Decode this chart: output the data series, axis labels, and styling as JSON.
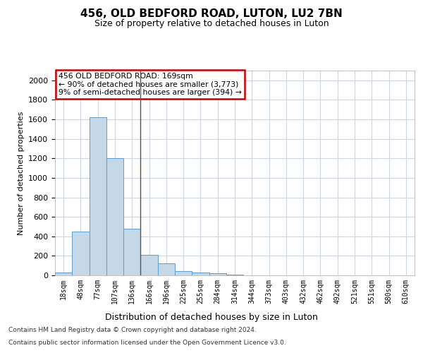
{
  "title1": "456, OLD BEDFORD ROAD, LUTON, LU2 7BN",
  "title2": "Size of property relative to detached houses in Luton",
  "xlabel": "Distribution of detached houses by size in Luton",
  "ylabel": "Number of detached properties",
  "categories": [
    "18sqm",
    "48sqm",
    "77sqm",
    "107sqm",
    "136sqm",
    "166sqm",
    "196sqm",
    "225sqm",
    "255sqm",
    "284sqm",
    "314sqm",
    "344sqm",
    "373sqm",
    "403sqm",
    "432sqm",
    "462sqm",
    "492sqm",
    "521sqm",
    "551sqm",
    "580sqm",
    "610sqm"
  ],
  "values": [
    30,
    450,
    1620,
    1200,
    480,
    210,
    120,
    40,
    30,
    20,
    10,
    0,
    0,
    0,
    0,
    0,
    0,
    0,
    0,
    0,
    0
  ],
  "bar_color": "#c5d8e8",
  "bar_edge_color": "#5b9bd5",
  "annotation_text1": "456 OLD BEDFORD ROAD: 169sqm",
  "annotation_text2": "← 90% of detached houses are smaller (3,773)",
  "annotation_text3": "9% of semi-detached houses are larger (394) →",
  "annotation_box_color": "#ffffff",
  "annotation_border_color": "#cc0000",
  "ylim": [
    0,
    2100
  ],
  "yticks": [
    0,
    200,
    400,
    600,
    800,
    1000,
    1200,
    1400,
    1600,
    1800,
    2000
  ],
  "footnote1": "Contains HM Land Registry data © Crown copyright and database right 2024.",
  "footnote2": "Contains public sector information licensed under the Open Government Licence v3.0.",
  "bg_color": "#ffffff",
  "grid_color": "#ccd6e0",
  "highlight_line_index": 5
}
